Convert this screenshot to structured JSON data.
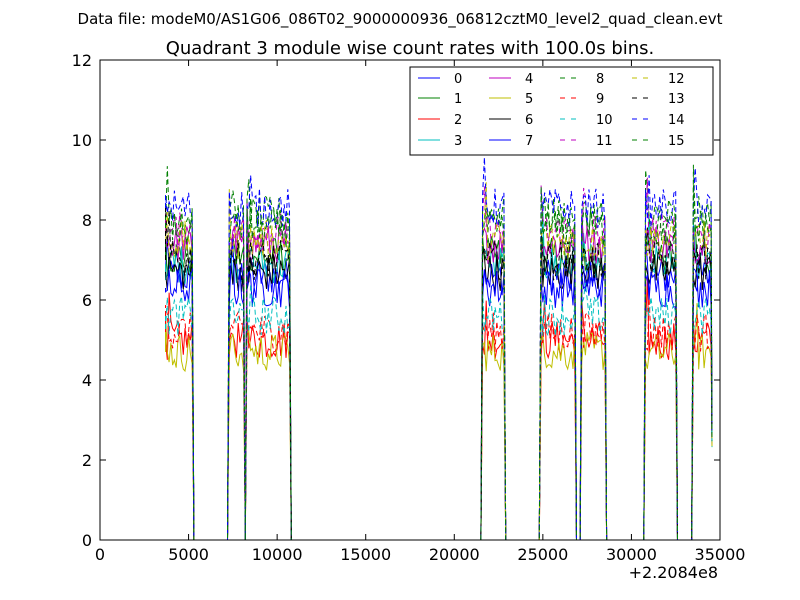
{
  "page": {
    "data_file_label": "Data file: modeM0/AS1G06_086T02_9000000936_06812cztM0_level2_quad_clean.evt"
  },
  "chart_data": {
    "type": "line",
    "title": "Quadrant 3 module wise count rates with 100.0s bins.",
    "xlabel": "",
    "ylabel": "",
    "x_offset_label": "+2.2084e8",
    "xlim": [
      0,
      35000
    ],
    "ylim": [
      0,
      12
    ],
    "xticks": [
      0,
      5000,
      10000,
      15000,
      20000,
      25000,
      30000,
      35000
    ],
    "yticks": [
      0,
      2,
      4,
      6,
      8,
      10,
      12
    ],
    "legend_position": "top-right",
    "legend_columns": 4,
    "grid": false,
    "observation_segments": [
      [
        3700,
        5200
      ],
      [
        7300,
        8100
      ],
      [
        8300,
        10700
      ],
      [
        21600,
        22800
      ],
      [
        24900,
        26800
      ],
      [
        27200,
        28500
      ],
      [
        30800,
        32500
      ],
      [
        33500,
        34500
      ]
    ],
    "series": [
      {
        "name": "0",
        "color": "#0000ff",
        "dash": "solid",
        "level": 6.6
      },
      {
        "name": "1",
        "color": "#008000",
        "dash": "solid",
        "level": 7.1
      },
      {
        "name": "2",
        "color": "#ff0000",
        "dash": "solid",
        "level": 5.0
      },
      {
        "name": "3",
        "color": "#00bfbf",
        "dash": "solid",
        "level": 6.9
      },
      {
        "name": "4",
        "color": "#bf00bf",
        "dash": "solid",
        "level": 7.4
      },
      {
        "name": "5",
        "color": "#bfbf00",
        "dash": "solid",
        "level": 4.7
      },
      {
        "name": "6",
        "color": "#000000",
        "dash": "solid",
        "level": 6.7
      },
      {
        "name": "7",
        "color": "#0000ff",
        "dash": "solid",
        "level": 6.3
      },
      {
        "name": "8",
        "color": "#008000",
        "dash": "dashed",
        "level": 8.1
      },
      {
        "name": "9",
        "color": "#ff0000",
        "dash": "dashed",
        "level": 5.2
      },
      {
        "name": "10",
        "color": "#00bfbf",
        "dash": "dashed",
        "level": 5.6
      },
      {
        "name": "11",
        "color": "#bf00bf",
        "dash": "dashed",
        "level": 7.7
      },
      {
        "name": "12",
        "color": "#bfbf00",
        "dash": "dashed",
        "level": 7.5
      },
      {
        "name": "13",
        "color": "#000000",
        "dash": "dashed",
        "level": 7.0
      },
      {
        "name": "14",
        "color": "#0000ff",
        "dash": "dashed",
        "level": 8.3
      },
      {
        "name": "15",
        "color": "#008000",
        "dash": "dashed",
        "level": 7.8
      }
    ]
  }
}
